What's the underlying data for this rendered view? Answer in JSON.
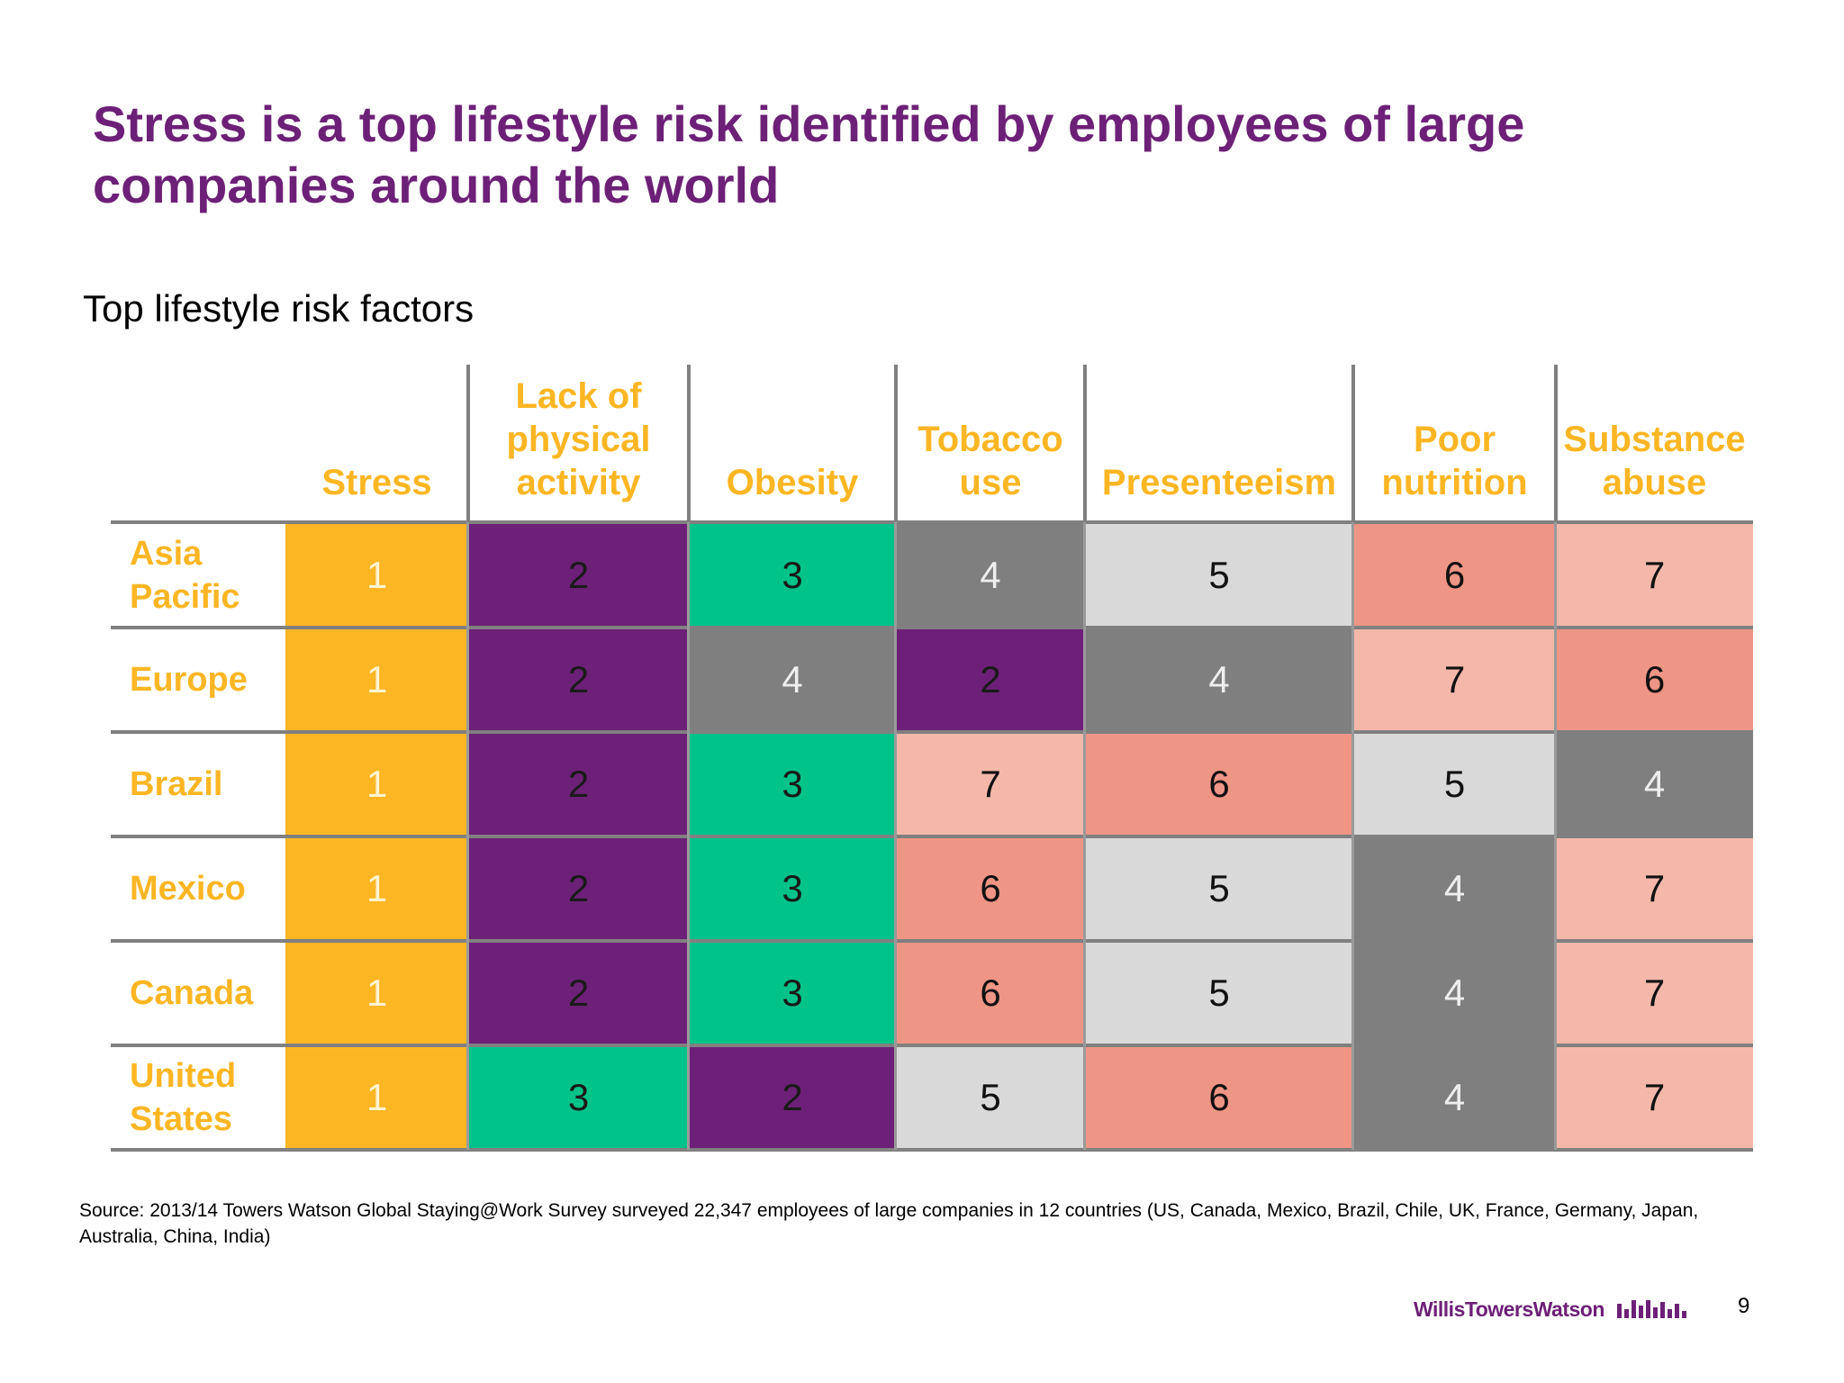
{
  "title": "Stress is a top lifestyle risk identified by employees of large companies around the world",
  "chart_data": {
    "type": "table",
    "title": "Top lifestyle risk factors",
    "columns": [
      "Stress",
      "Lack of physical activity",
      "Obesity",
      "Tobacco use",
      "Presenteeism",
      "Poor nutrition",
      "Substance abuse"
    ],
    "rows": [
      {
        "region": "Asia Pacific",
        "ranks": [
          1,
          2,
          3,
          4,
          5,
          6,
          7
        ]
      },
      {
        "region": "Europe",
        "ranks": [
          1,
          2,
          4,
          2,
          4,
          7,
          6
        ]
      },
      {
        "region": "Brazil",
        "ranks": [
          1,
          2,
          3,
          7,
          6,
          5,
          4
        ]
      },
      {
        "region": "Mexico",
        "ranks": [
          1,
          2,
          3,
          6,
          5,
          4,
          7
        ]
      },
      {
        "region": "Canada",
        "ranks": [
          1,
          2,
          3,
          6,
          5,
          4,
          7
        ]
      },
      {
        "region": "United States",
        "ranks": [
          1,
          3,
          2,
          5,
          6,
          4,
          7
        ]
      }
    ],
    "rank_colors": {
      "1": "#fdb623",
      "2": "#6d2077",
      "3": "#00c389",
      "4": "#807f80",
      "5": "#d9d9d9",
      "6": "#ef9585",
      "7": "#f4b8ab"
    },
    "rank_text_colors": {
      "1": "#fff4d0",
      "2": "#1a1a1a",
      "3": "#1a1a1a",
      "4": "#eeeeee",
      "5": "#111111",
      "6": "#111111",
      "7": "#111111"
    }
  },
  "source": "Source: 2013/14 Towers Watson Global Staying@Work Survey surveyed 22,347 employees of large companies in 12 countries (US, Canada, Mexico, Brazil, Chile, UK, France, Germany, Japan, Australia, China, India)",
  "footer": {
    "brand": "WillisTowersWatson",
    "page_number": "9"
  }
}
